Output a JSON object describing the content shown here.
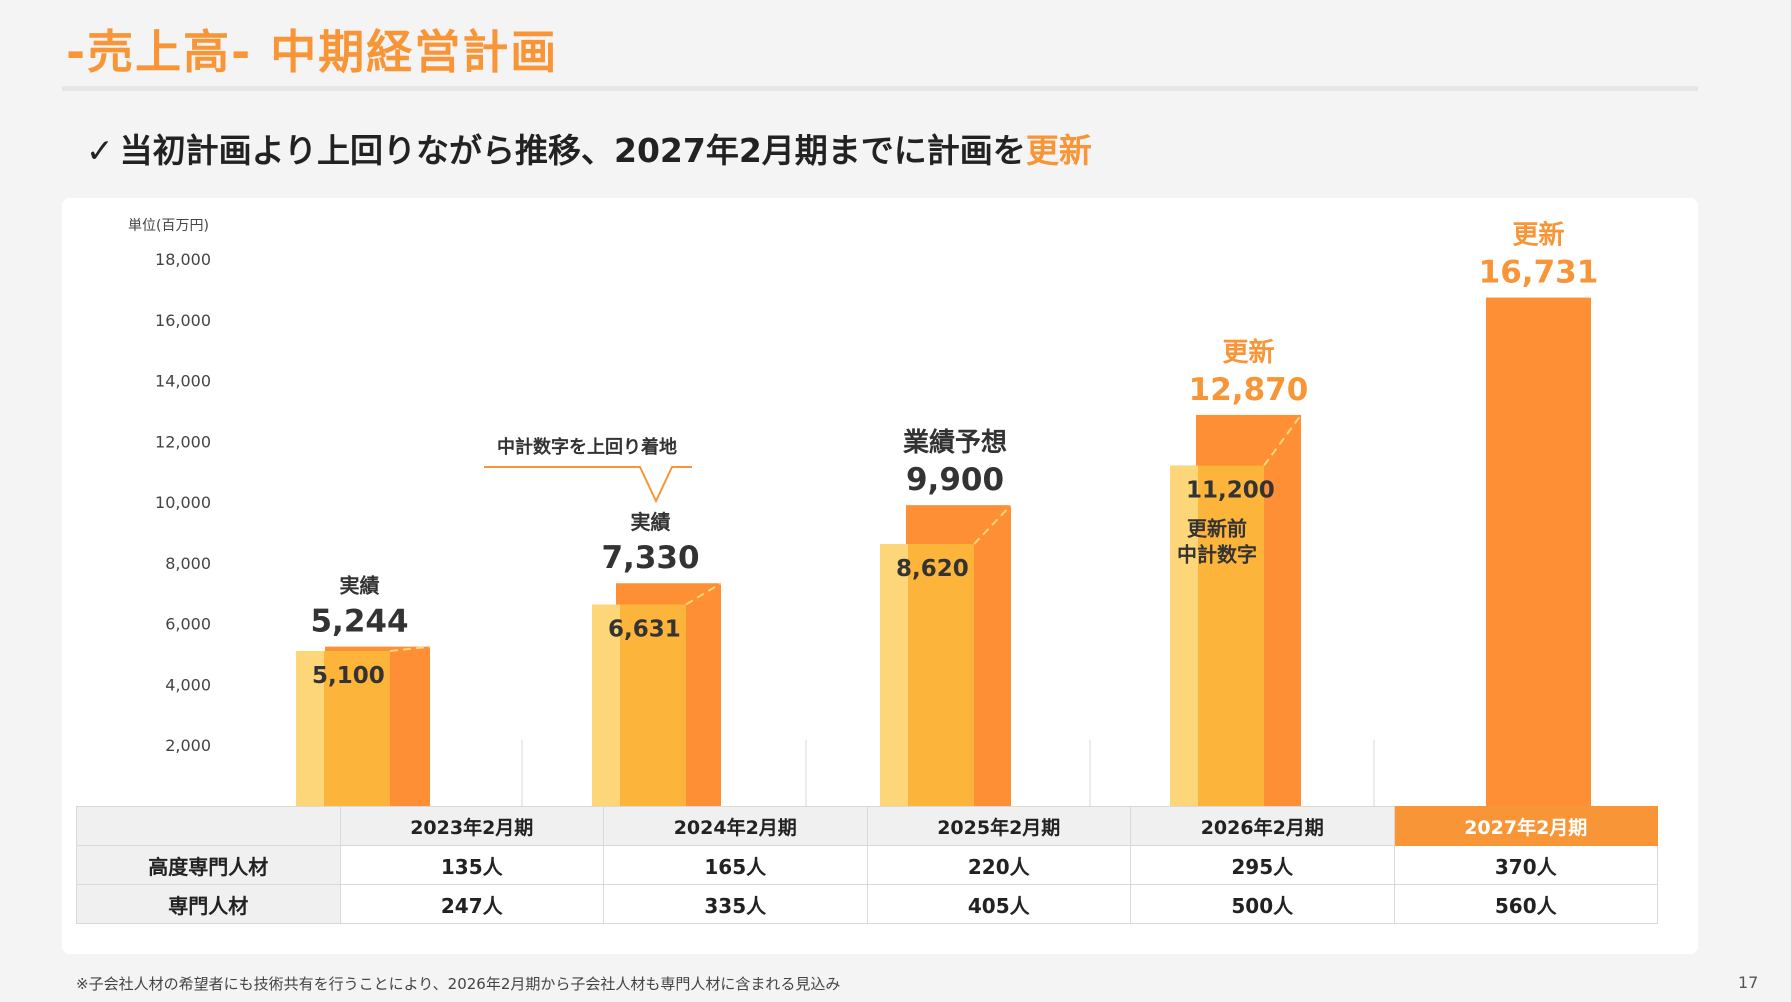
{
  "page": {
    "title": "-売上高- 中期経営計画",
    "subtitle_check": "✓",
    "subtitle_main": "当初計画より上回りながら推移、2027年2月期までに計画を",
    "subtitle_accent": "更新",
    "footnote": "※子会社人材の希望者にも技術共有を行うことにより、2026年2月期から子会社人材も専門人材に含まれる見込み",
    "page_number": "17"
  },
  "colors": {
    "accent": "#f89536",
    "plan_bar": "#fcb43b",
    "plan_bar_light": "#fdd679",
    "actual_bar": "#fe8f35"
  },
  "chart_data": {
    "type": "bar",
    "unit_label": "単位(百万円)",
    "ylim": [
      0,
      18000
    ],
    "yticks": [
      "18,000",
      "16,000",
      "14,000",
      "12,000",
      "10,000",
      "8,000",
      "6,000",
      "4,000",
      "2,000"
    ],
    "ytick_values": [
      18000,
      16000,
      14000,
      12000,
      10000,
      8000,
      6000,
      4000,
      2000
    ],
    "categories": [
      "2023年2月期",
      "2024年2月期",
      "2025年2月期",
      "2026年2月期",
      "2027年2月期"
    ],
    "series": [
      {
        "name": "中計数字",
        "values": [
          5100,
          6631,
          8620,
          11200,
          null
        ],
        "labels": [
          "5,100",
          "6,631",
          "8,620",
          "11,200",
          ""
        ]
      },
      {
        "name": "",
        "values": [
          5244,
          7330,
          9900,
          12870,
          16731
        ],
        "labels": [
          "5,244",
          "7,330",
          "9,900",
          "12,870",
          "16,731"
        ]
      }
    ],
    "bar_tags": [
      "実績",
      "実績",
      "業績予想",
      "更新",
      "更新"
    ],
    "plan_note": [
      "更新前",
      "中計数字"
    ],
    "callout": "中計数字を上回り着地"
  },
  "table": {
    "rows": [
      {
        "label": "高度専門人材",
        "values": [
          "135人",
          "165人",
          "220人",
          "295人",
          "370人"
        ]
      },
      {
        "label": "専門人材",
        "values": [
          "247人",
          "335人",
          "405人",
          "500人",
          "560人"
        ]
      }
    ]
  }
}
